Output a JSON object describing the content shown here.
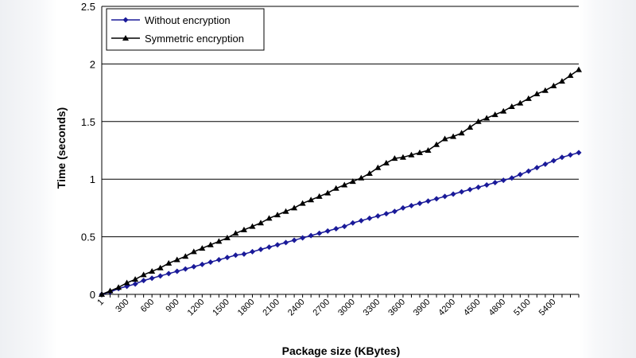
{
  "chart_data": {
    "type": "line",
    "title": "",
    "xlabel": "Package size (KBytes)",
    "ylabel": "Time (seconds)",
    "ylim": [
      0,
      2.5
    ],
    "yticks": [
      "0",
      "0.5",
      "1",
      "1.5",
      "2",
      "2.5"
    ],
    "xlim": [
      0,
      5700
    ],
    "xtick_labels": [
      {
        "label": "1",
        "x": 0
      },
      {
        "label": "300",
        "x": 300
      },
      {
        "label": "600",
        "x": 600
      },
      {
        "label": "900",
        "x": 900
      },
      {
        "label": "1200",
        "x": 1200
      },
      {
        "label": "1500",
        "x": 1500
      },
      {
        "label": "1800",
        "x": 1800
      },
      {
        "label": "2100",
        "x": 2100
      },
      {
        "label": "2400",
        "x": 2400
      },
      {
        "label": "2700",
        "x": 2700
      },
      {
        "label": "3000",
        "x": 3000
      },
      {
        "label": "3300",
        "x": 3300
      },
      {
        "label": "3600",
        "x": 3600
      },
      {
        "label": "3900",
        "x": 3900
      },
      {
        "label": "4200",
        "x": 4200
      },
      {
        "label": "4500",
        "x": 4500
      },
      {
        "label": "4800",
        "x": 4800
      },
      {
        "label": "5100",
        "x": 5100
      },
      {
        "label": "5400",
        "x": 5400
      }
    ],
    "grid": "horizontal",
    "legend": "top-left",
    "x": [
      0,
      100,
      200,
      300,
      400,
      500,
      600,
      700,
      800,
      900,
      1000,
      1100,
      1200,
      1300,
      1400,
      1500,
      1600,
      1700,
      1800,
      1900,
      2000,
      2100,
      2200,
      2300,
      2400,
      2500,
      2600,
      2700,
      2800,
      2900,
      3000,
      3100,
      3200,
      3300,
      3400,
      3500,
      3600,
      3700,
      3800,
      3900,
      4000,
      4100,
      4200,
      4300,
      4400,
      4500,
      4600,
      4700,
      4800,
      4900,
      5000,
      5100,
      5200,
      5300,
      5400,
      5500,
      5600,
      5700
    ],
    "series": [
      {
        "name": "Without encryption",
        "color": "#1a1a99",
        "marker": "diamond",
        "values": [
          0.0,
          0.02,
          0.05,
          0.07,
          0.09,
          0.12,
          0.14,
          0.16,
          0.18,
          0.2,
          0.22,
          0.24,
          0.26,
          0.28,
          0.3,
          0.32,
          0.34,
          0.35,
          0.37,
          0.39,
          0.41,
          0.43,
          0.45,
          0.47,
          0.49,
          0.51,
          0.53,
          0.55,
          0.57,
          0.59,
          0.62,
          0.64,
          0.66,
          0.68,
          0.7,
          0.72,
          0.75,
          0.77,
          0.79,
          0.81,
          0.83,
          0.85,
          0.87,
          0.89,
          0.91,
          0.93,
          0.95,
          0.97,
          0.99,
          1.01,
          1.04,
          1.07,
          1.1,
          1.13,
          1.16,
          1.19,
          1.21,
          1.23
        ]
      },
      {
        "name": "Symmetric encryption",
        "color": "#000000",
        "marker": "triangle",
        "values": [
          0.0,
          0.03,
          0.06,
          0.1,
          0.13,
          0.17,
          0.2,
          0.23,
          0.27,
          0.3,
          0.33,
          0.37,
          0.4,
          0.43,
          0.46,
          0.49,
          0.53,
          0.56,
          0.59,
          0.62,
          0.66,
          0.69,
          0.72,
          0.75,
          0.79,
          0.82,
          0.85,
          0.88,
          0.92,
          0.95,
          0.98,
          1.01,
          1.05,
          1.1,
          1.14,
          1.18,
          1.19,
          1.21,
          1.23,
          1.25,
          1.3,
          1.35,
          1.37,
          1.4,
          1.45,
          1.5,
          1.53,
          1.56,
          1.59,
          1.63,
          1.66,
          1.7,
          1.74,
          1.77,
          1.81,
          1.85,
          1.9,
          1.95
        ]
      }
    ]
  }
}
